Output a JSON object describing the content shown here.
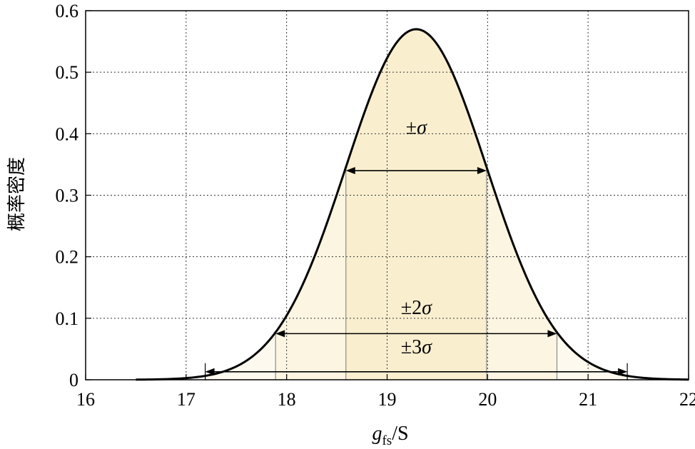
{
  "chart_data": {
    "type": "area",
    "xlabel_main": "g",
    "xlabel_sub": "fs",
    "xlabel_unit": "/S",
    "ylabel": "概率密度",
    "xlim": [
      16,
      22
    ],
    "ylim": [
      0,
      0.6
    ],
    "x_ticks": [
      "16",
      "17",
      "18",
      "19",
      "20",
      "21",
      "22"
    ],
    "y_ticks": [
      "0",
      "0.1",
      "0.2",
      "0.3",
      "0.4",
      "0.5",
      "0.6"
    ],
    "grid": true,
    "distribution": {
      "mean": 19.29,
      "sigma": 0.7,
      "x_start": 16.5,
      "x_end": 22.0
    },
    "intervals": [
      {
        "label": "±σ",
        "k": 1,
        "y_arrow": 0.34
      },
      {
        "label": "±2σ",
        "k": 2,
        "y_arrow": 0.075
      },
      {
        "label": "±3σ",
        "k": 3,
        "y_arrow": 0.013
      }
    ],
    "colors": {
      "curve": "#000000",
      "fill_1sigma": "#f9efcf",
      "fill_2sigma": "#fbf5e1",
      "fill_3sigma": "#fdf9ee",
      "grid": "#333333",
      "interval_lines": "#8c8c8c"
    }
  }
}
